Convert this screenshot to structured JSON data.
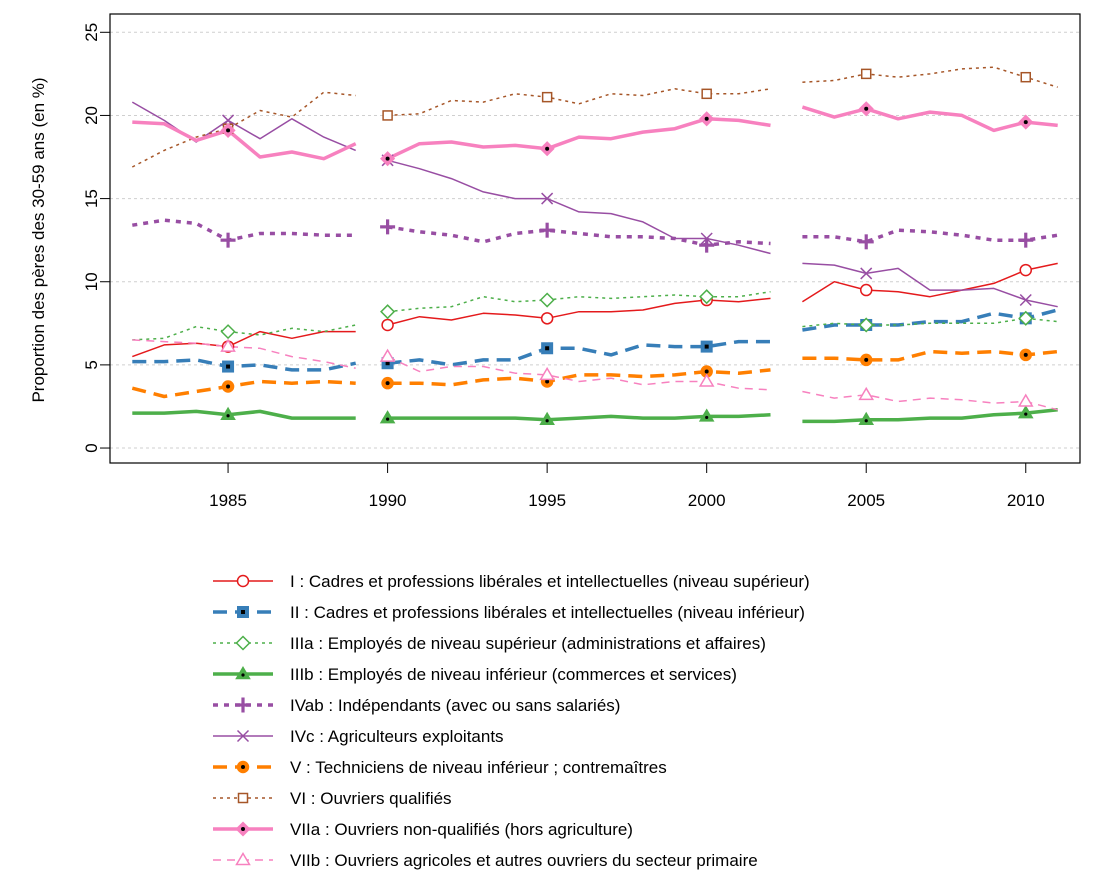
{
  "chart_data": {
    "type": "line",
    "title": "",
    "xlabel": "",
    "ylabel": "Proportion des pères des 30-59 ans (en %)",
    "xlim": [
      1981.3,
      2011.7
    ],
    "ylim": [
      -0.9,
      26.1
    ],
    "x_ticks": [
      1985,
      1990,
      1995,
      2000,
      2005,
      2010
    ],
    "y_ticks": [
      0,
      5,
      10,
      15,
      20,
      25
    ],
    "grid": "horizontal dotted",
    "legend_position": "below",
    "segments": [
      [
        1982,
        1989
      ],
      [
        1990,
        2002
      ],
      [
        2003,
        2011
      ]
    ],
    "x": [
      1982,
      1983,
      1984,
      1985,
      1986,
      1987,
      1988,
      1989,
      1990,
      1991,
      1992,
      1993,
      1994,
      1995,
      1996,
      1997,
      1998,
      1999,
      2000,
      2001,
      2002,
      2003,
      2004,
      2005,
      2006,
      2007,
      2008,
      2009,
      2010,
      2011
    ],
    "series": [
      {
        "name": "I : Cadres et professions libérales et intellectuelles (niveau supérieur)",
        "color": "#e41a1c",
        "width": 1.5,
        "dash": "",
        "marker": "circle-open",
        "values": [
          5.5,
          6.2,
          6.3,
          6.1,
          7.0,
          6.6,
          7.0,
          7.0,
          7.4,
          7.9,
          7.7,
          8.1,
          8.0,
          7.8,
          8.2,
          8.2,
          8.3,
          8.7,
          8.9,
          8.8,
          9.0,
          8.8,
          10.0,
          9.5,
          9.4,
          9.1,
          9.5,
          9.9,
          10.7,
          11.1
        ]
      },
      {
        "name": "II : Cadres et professions libérales et intellectuelles (niveau inférieur)",
        "color": "#377eb8",
        "width": 3.5,
        "dash": "14,8",
        "marker": "square-dot",
        "values": [
          5.2,
          5.2,
          5.3,
          4.9,
          5.0,
          4.7,
          4.7,
          5.1,
          5.1,
          5.3,
          5.0,
          5.3,
          5.3,
          6.0,
          6.0,
          5.6,
          6.2,
          6.1,
          6.1,
          6.4,
          6.4,
          7.1,
          7.4,
          7.4,
          7.4,
          7.6,
          7.6,
          8.1,
          7.8,
          8.3
        ]
      },
      {
        "name": "IIIa : Employés de niveau supérieur (administrations et affaires)",
        "color": "#4daf4a",
        "width": 1.5,
        "dash": "3,4",
        "marker": "diamond-open",
        "values": [
          6.5,
          6.6,
          7.3,
          7.0,
          6.8,
          7.2,
          7.0,
          7.4,
          8.2,
          8.4,
          8.5,
          9.1,
          8.8,
          8.9,
          9.1,
          9.0,
          9.1,
          9.2,
          9.1,
          9.1,
          9.4,
          7.3,
          7.5,
          7.4,
          7.4,
          7.5,
          7.5,
          7.5,
          7.8,
          7.6
        ]
      },
      {
        "name": "IIIb : Employés de niveau inférieur (commerces et services)",
        "color": "#4daf4a",
        "width": 3.5,
        "dash": "",
        "marker": "triangle-filled",
        "values": [
          2.1,
          2.1,
          2.2,
          2.0,
          2.2,
          1.8,
          1.8,
          1.8,
          1.8,
          1.8,
          1.8,
          1.8,
          1.8,
          1.7,
          1.8,
          1.9,
          1.8,
          1.8,
          1.9,
          1.9,
          2.0,
          1.6,
          1.6,
          1.7,
          1.7,
          1.8,
          1.8,
          2.0,
          2.1,
          2.3
        ]
      },
      {
        "name": "IVab : Indépendants (avec ou sans salariés)",
        "color": "#984ea3",
        "width": 3.5,
        "dash": "5,6",
        "marker": "plus",
        "values": [
          13.4,
          13.7,
          13.5,
          12.5,
          12.9,
          12.9,
          12.8,
          12.8,
          13.3,
          13.0,
          12.8,
          12.4,
          12.9,
          13.1,
          12.9,
          12.7,
          12.7,
          12.6,
          12.2,
          12.4,
          12.3,
          12.7,
          12.7,
          12.4,
          13.1,
          13.0,
          12.8,
          12.5,
          12.5,
          12.8
        ]
      },
      {
        "name": "IVc : Agriculteurs exploitants",
        "color": "#984ea3",
        "width": 1.5,
        "dash": "",
        "marker": "cross",
        "values": [
          20.8,
          19.7,
          18.4,
          19.7,
          18.6,
          19.8,
          18.7,
          17.9,
          17.3,
          16.8,
          16.2,
          15.4,
          15.0,
          15.0,
          14.2,
          14.1,
          13.6,
          12.6,
          12.6,
          12.2,
          11.7,
          11.1,
          11.0,
          10.5,
          10.8,
          9.5,
          9.5,
          9.6,
          8.9,
          8.5
        ]
      },
      {
        "name": "V : Techniciens de niveau inférieur ; contremaîtres",
        "color": "#ff7f00",
        "width": 3.5,
        "dash": "14,8",
        "marker": "circle-dot",
        "values": [
          3.6,
          3.1,
          3.4,
          3.7,
          4.0,
          3.9,
          4.0,
          3.9,
          3.9,
          3.9,
          3.8,
          4.1,
          4.2,
          4.0,
          4.4,
          4.4,
          4.3,
          4.4,
          4.6,
          4.5,
          4.7,
          5.4,
          5.4,
          5.3,
          5.3,
          5.8,
          5.7,
          5.8,
          5.6,
          5.8
        ]
      },
      {
        "name": "VI : Ouvriers qualifiés",
        "color": "#a65628",
        "width": 1.5,
        "dash": "3,4",
        "marker": "square-open",
        "values": [
          16.9,
          17.9,
          18.7,
          19.2,
          20.3,
          19.9,
          21.4,
          21.2,
          20.0,
          20.1,
          20.9,
          20.8,
          21.3,
          21.1,
          20.7,
          21.3,
          21.2,
          21.6,
          21.3,
          21.3,
          21.6,
          22.0,
          22.1,
          22.5,
          22.3,
          22.5,
          22.8,
          22.9,
          22.3,
          21.7
        ]
      },
      {
        "name": "VIIa : Ouvriers non-qualifiés (hors agriculture)",
        "color": "#f781bf",
        "width": 3.5,
        "dash": "",
        "marker": "diamond-dot",
        "values": [
          19.6,
          19.5,
          18.5,
          19.1,
          17.5,
          17.8,
          17.4,
          18.3,
          17.4,
          18.3,
          18.4,
          18.1,
          18.2,
          18.0,
          18.7,
          18.6,
          19.0,
          19.2,
          19.8,
          19.7,
          19.4,
          20.5,
          19.9,
          20.4,
          19.8,
          20.2,
          20.0,
          19.1,
          19.6,
          19.4
        ]
      },
      {
        "name": "VIIb : Ouvriers agricoles et autres ouvriers du secteur primaire",
        "color": "#f781bf",
        "width": 1.5,
        "dash": "8,6",
        "marker": "triangle-open",
        "values": [
          6.5,
          6.4,
          6.3,
          6.1,
          6.0,
          5.5,
          5.2,
          4.8,
          5.5,
          4.6,
          4.9,
          4.9,
          4.5,
          4.4,
          4.0,
          4.2,
          3.8,
          4.0,
          4.0,
          3.6,
          3.5,
          3.4,
          3.0,
          3.2,
          2.8,
          3.0,
          2.9,
          2.7,
          2.8,
          2.3
        ]
      }
    ],
    "marker_years": [
      1985,
      1990,
      1995,
      2000,
      2005,
      2010
    ]
  }
}
